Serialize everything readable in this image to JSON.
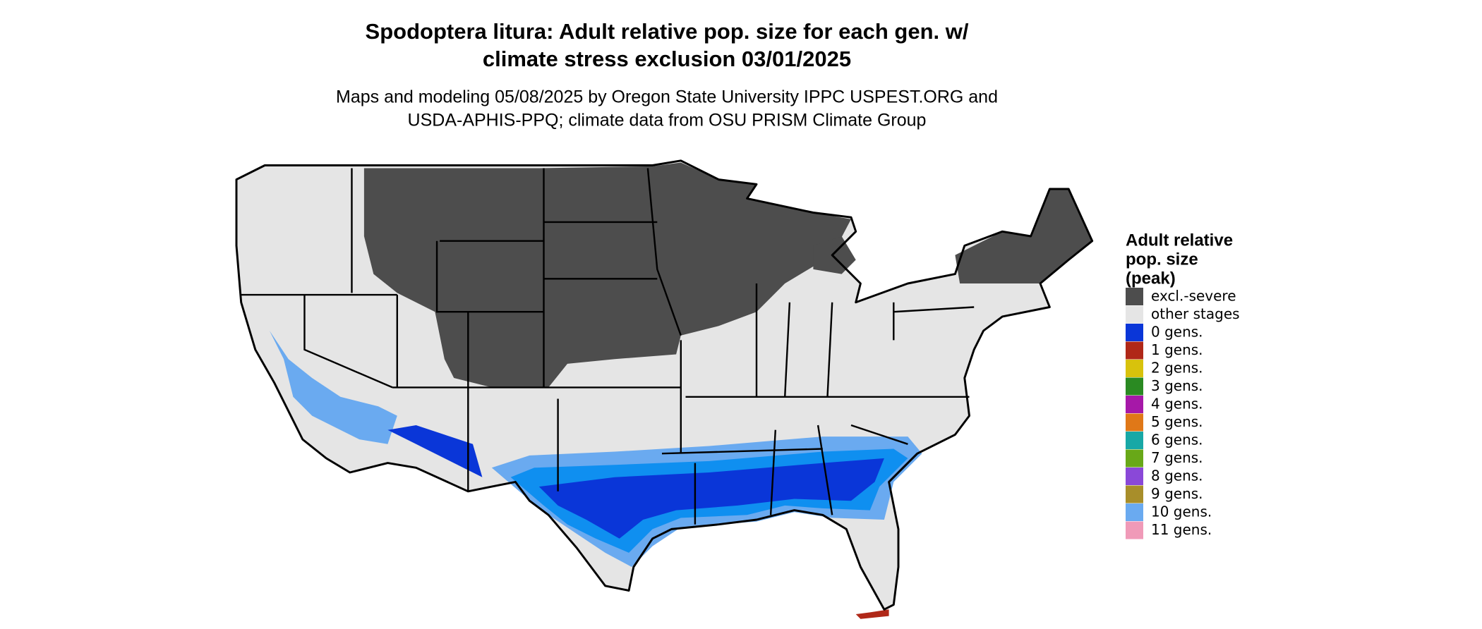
{
  "header": {
    "title_lines": [
      "Spodoptera litura: Adult relative pop. size for each gen. w/",
      "climate stress exclusion 03/01/2025"
    ],
    "subtitle_lines": [
      "Maps and modeling 05/08/2025 by Oregon State University IPPC USPEST.ORG and",
      "USDA-APHIS-PPQ; climate data from OSU PRISM Climate Group"
    ]
  },
  "legend": {
    "title_lines": [
      "Adult relative",
      "pop. size",
      "(peak)"
    ],
    "items": [
      {
        "label": "excl.-severe",
        "color": "#4d4d4d"
      },
      {
        "label": "other stages",
        "color": "#e5e5e5"
      },
      {
        "label": "0 gens.",
        "color": "#0a36d8"
      },
      {
        "label": "1 gens.",
        "color": "#b02818"
      },
      {
        "label": "2 gens.",
        "color": "#d8c20c"
      },
      {
        "label": "3 gens.",
        "color": "#2a8a22"
      },
      {
        "label": "4 gens.",
        "color": "#a618a8"
      },
      {
        "label": "5 gens.",
        "color": "#e07818"
      },
      {
        "label": "6 gens.",
        "color": "#18a8a6"
      },
      {
        "label": "7 gens.",
        "color": "#68a818"
      },
      {
        "label": "8 gens.",
        "color": "#8a48d8"
      },
      {
        "label": "9 gens.",
        "color": "#a88e2a"
      },
      {
        "label": "10 gens.",
        "color": "#6aaaf0"
      },
      {
        "label": "11 gens.",
        "color": "#f09ab8"
      }
    ]
  }
}
